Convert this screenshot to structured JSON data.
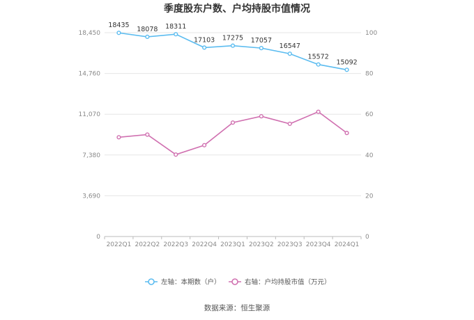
{
  "chart_data": {
    "type": "line",
    "title": "季度股东户数、户均持股市值情况",
    "categories": [
      "2022Q1",
      "2022Q2",
      "2022Q3",
      "2022Q4",
      "2023Q1",
      "2023Q2",
      "2023Q3",
      "2023Q4",
      "2024Q1"
    ],
    "series": [
      {
        "name": "左轴：本期数（户）",
        "axis": "left",
        "color": "#5bbcf0",
        "values": [
          18435,
          18078,
          18311,
          17103,
          17275,
          17057,
          16547,
          15572,
          15092
        ],
        "labels": [
          "18435",
          "18078",
          "18311",
          "17103",
          "17275",
          "17057",
          "16547",
          "15572",
          "15092"
        ]
      },
      {
        "name": "右轴：户均持股市值（万元）",
        "axis": "right",
        "color": "#d070b0",
        "values": [
          48.7,
          50.0,
          40.2,
          44.8,
          55.9,
          59.0,
          55.3,
          61.2,
          50.8
        ]
      }
    ],
    "left_axis": {
      "ylim": [
        0,
        18450
      ],
      "ticks": [
        0,
        3690,
        7380,
        11070,
        14760,
        18450
      ],
      "tick_labels": [
        "0",
        "3,690",
        "7,380",
        "11,070",
        "14,760",
        "18,450"
      ]
    },
    "right_axis": {
      "ylim": [
        0,
        100
      ],
      "ticks": [
        0,
        20,
        40,
        60,
        80,
        100
      ],
      "tick_labels": [
        "0",
        "20",
        "40",
        "60",
        "80",
        "100"
      ]
    },
    "grid": true,
    "legend_position": "bottom",
    "source": "数据来源：恒生聚源"
  }
}
